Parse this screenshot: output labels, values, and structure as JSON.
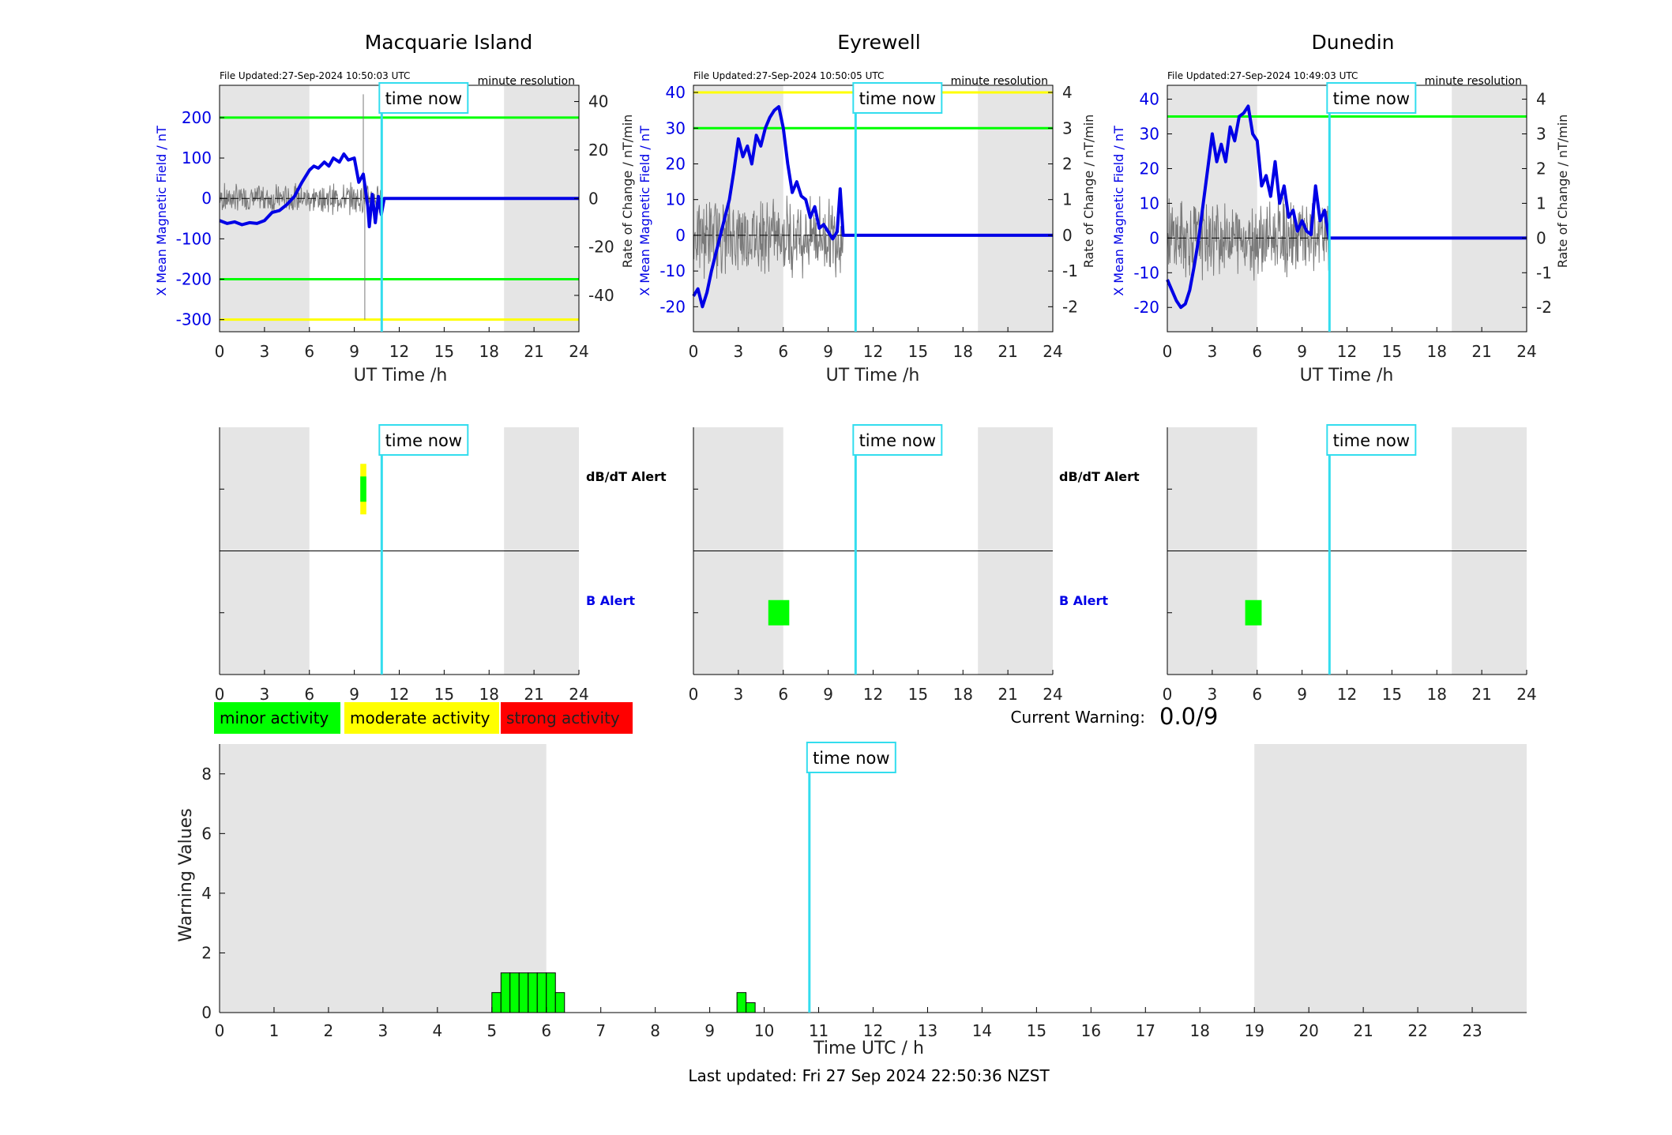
{
  "colors": {
    "shade": "#e5e5e5",
    "blue": "#0000e6",
    "green": "#00ff00",
    "yellow": "#ffff00",
    "cyan": "#33ddee",
    "red": "#ff0000",
    "gray_line": "#7a7a7a"
  },
  "labels": {
    "time_now": "time now",
    "minute_resolution": "minute resolution",
    "x_axis": "UT Time /h",
    "y_left": "X Mean Magnetic Field / nT",
    "y_right": "Rate of Change / nT/min",
    "dbdt_alert": "dB/dT Alert",
    "b_alert": "B Alert",
    "current_warning_label": "Current Warning:",
    "current_warning_value": "0.0/9",
    "bottom_ylabel": "Warning Values",
    "bottom_xlabel": "Time UTC / h",
    "last_updated": "Last updated: Fri 27 Sep 2024 22:50:36 NZST"
  },
  "legend": [
    {
      "label": "minor activity",
      "color": "#00ff00",
      "text_color": "#000000"
    },
    {
      "label": "moderate activity",
      "color": "#ffff00",
      "text_color": "#000000"
    },
    {
      "label": "strong activity",
      "color": "#ff0000",
      "text_color": "#222222"
    }
  ],
  "chart_data": [
    {
      "type": "line",
      "title": "Macquarie Island",
      "file_updated": "File Updated:27-Sep-2024 10:50:03 UTC",
      "xlim": [
        0,
        24
      ],
      "x_ticks": [
        0,
        3,
        6,
        9,
        12,
        15,
        18,
        21,
        24
      ],
      "ylim_left": [
        -330,
        280
      ],
      "yticks_left": [
        -300,
        -200,
        -100,
        0,
        100,
        200
      ],
      "ylim_right": [
        -55,
        46.7
      ],
      "yticks_right": [
        -40,
        -20,
        0,
        20,
        40
      ],
      "shaded": [
        [
          0,
          6
        ],
        [
          19,
          24
        ]
      ],
      "time_now": 10.83,
      "thresholds": [
        {
          "value": 200,
          "color": "green"
        },
        {
          "value": -200,
          "color": "green"
        },
        {
          "value": -300,
          "color": "yellow"
        }
      ],
      "series": [
        {
          "x": [
            0,
            0.5,
            1,
            1.5,
            2,
            2.5,
            3,
            3.5,
            4,
            4.5,
            5,
            5.5,
            6,
            6.3,
            6.6,
            7,
            7.3,
            7.6,
            8,
            8.3,
            8.6,
            9,
            9.3,
            9.6,
            9.9,
            10,
            10.2,
            10.4,
            10.6,
            10.8,
            11,
            15,
            20,
            24
          ],
          "y": [
            -55,
            -62,
            -58,
            -65,
            -60,
            -62,
            -55,
            -35,
            -30,
            -15,
            5,
            40,
            70,
            80,
            75,
            90,
            80,
            100,
            90,
            110,
            95,
            100,
            40,
            60,
            -20,
            -70,
            10,
            -60,
            5,
            -40,
            0,
            0,
            0,
            0
          ]
        }
      ],
      "rate_extent_x": [
        0,
        10.8
      ],
      "rate_amplitude": 5,
      "rate_spikes": [
        {
          "x": 9.6,
          "y": 43
        },
        {
          "x": 9.7,
          "y": -50
        }
      ]
    },
    {
      "type": "line",
      "title": "Eyrewell",
      "file_updated": "File Updated:27-Sep-2024 10:50:05 UTC",
      "xlim": [
        0,
        24
      ],
      "x_ticks": [
        0,
        3,
        6,
        9,
        12,
        15,
        18,
        21,
        24
      ],
      "ylim_left": [
        -27,
        42
      ],
      "yticks_left": [
        -20,
        -10,
        0,
        10,
        20,
        30,
        40
      ],
      "ylim_right": [
        -2.7,
        4.2
      ],
      "yticks_right": [
        -2,
        -1,
        0,
        1,
        2,
        3,
        4
      ],
      "shaded": [
        [
          0,
          6
        ],
        [
          19,
          24
        ]
      ],
      "time_now": 10.83,
      "thresholds": [
        {
          "value": 40,
          "color": "yellow"
        },
        {
          "value": 30,
          "color": "green"
        }
      ],
      "series": [
        {
          "x": [
            0,
            0.3,
            0.6,
            0.9,
            1.2,
            1.5,
            1.8,
            2.1,
            2.4,
            2.7,
            3,
            3.3,
            3.6,
            3.9,
            4.2,
            4.5,
            4.8,
            5.1,
            5.4,
            5.7,
            6,
            6.3,
            6.6,
            6.9,
            7.2,
            7.5,
            7.8,
            8.1,
            8.4,
            8.7,
            9,
            9.3,
            9.6,
            9.8,
            10,
            15,
            20,
            24
          ],
          "y": [
            -17,
            -15,
            -20,
            -16,
            -10,
            -5,
            0,
            5,
            10,
            18,
            27,
            22,
            25,
            20,
            28,
            25,
            30,
            33,
            35,
            36,
            30,
            20,
            12,
            15,
            11,
            10,
            5,
            8,
            2,
            3,
            1,
            -1,
            1,
            13,
            0,
            0,
            0,
            0
          ]
        }
      ],
      "rate_extent_x": [
        0,
        10
      ],
      "rate_amplitude": 0.9,
      "rate_spikes": []
    },
    {
      "type": "line",
      "title": "Dunedin",
      "file_updated": "File Updated:27-Sep-2024 10:49:03 UTC",
      "xlim": [
        0,
        24
      ],
      "x_ticks": [
        0,
        3,
        6,
        9,
        12,
        15,
        18,
        21,
        24
      ],
      "ylim_left": [
        -27,
        44
      ],
      "yticks_left": [
        -20,
        -10,
        0,
        10,
        20,
        30,
        40
      ],
      "ylim_right": [
        -2.7,
        4.4
      ],
      "yticks_right": [
        -2,
        -1,
        0,
        1,
        2,
        3,
        4
      ],
      "shaded": [
        [
          0,
          6
        ],
        [
          19,
          24
        ]
      ],
      "time_now": 10.83,
      "thresholds": [
        {
          "value": 35,
          "color": "green"
        }
      ],
      "series": [
        {
          "x": [
            0,
            0.3,
            0.6,
            0.9,
            1.2,
            1.5,
            1.8,
            2.1,
            2.4,
            2.7,
            3,
            3.3,
            3.6,
            3.9,
            4.2,
            4.5,
            4.8,
            5.1,
            5.4,
            5.7,
            6,
            6.3,
            6.6,
            6.9,
            7.2,
            7.5,
            7.8,
            8.1,
            8.4,
            8.7,
            9,
            9.3,
            9.6,
            9.9,
            10.2,
            10.5,
            10.8,
            15,
            20,
            24
          ],
          "y": [
            -12,
            -15,
            -18,
            -20,
            -19,
            -15,
            -8,
            0,
            10,
            20,
            30,
            22,
            27,
            22,
            32,
            28,
            35,
            36,
            38,
            30,
            28,
            15,
            18,
            12,
            22,
            10,
            15,
            6,
            8,
            2,
            5,
            2,
            1,
            15,
            5,
            8,
            0,
            0,
            0,
            0
          ]
        }
      ],
      "rate_extent_x": [
        0,
        10.8
      ],
      "rate_amplitude": 0.9,
      "rate_spikes": []
    },
    {
      "type": "heatmap",
      "name": "alerts-macquarie",
      "xlim": [
        0,
        24
      ],
      "x_ticks": [
        0,
        3,
        6,
        9,
        12,
        15,
        18,
        21,
        24
      ],
      "shaded": [
        [
          0,
          6
        ],
        [
          19,
          24
        ]
      ],
      "time_now": 10.83,
      "rows": [
        "dB/dT Alert",
        "B Alert"
      ],
      "row_label_colors": [
        "#000000",
        "#0000e6"
      ],
      "cells": [
        {
          "row": 0,
          "x0": 9.4,
          "x1": 9.8,
          "level": "moderate",
          "span": "full"
        },
        {
          "row": 0,
          "x0": 9.4,
          "x1": 9.8,
          "level": "minor",
          "span": "inner"
        }
      ]
    },
    {
      "type": "heatmap",
      "name": "alerts-eyrewell",
      "xlim": [
        0,
        24
      ],
      "x_ticks": [
        0,
        3,
        6,
        9,
        12,
        15,
        18,
        21,
        24
      ],
      "shaded": [
        [
          0,
          6
        ],
        [
          19,
          24
        ]
      ],
      "time_now": 10.83,
      "rows": [
        "dB/dT Alert",
        "B Alert"
      ],
      "row_label_colors": [
        "#000000",
        "#0000e6"
      ],
      "cells": [
        {
          "row": 1,
          "x0": 5,
          "x1": 6.4,
          "level": "minor",
          "span": "inner"
        }
      ]
    },
    {
      "type": "heatmap",
      "name": "alerts-dunedin",
      "xlim": [
        0,
        24
      ],
      "x_ticks": [
        0,
        3,
        6,
        9,
        12,
        15,
        18,
        21,
        24
      ],
      "shaded": [
        [
          0,
          6
        ],
        [
          19,
          24
        ]
      ],
      "time_now": 10.83,
      "rows": [
        "dB/dT Alert",
        "B Alert"
      ],
      "row_label_colors": [
        "#000000",
        "#0000e6"
      ],
      "cells": [
        {
          "row": 1,
          "x0": 5.2,
          "x1": 6.3,
          "level": "minor",
          "span": "inner"
        }
      ]
    },
    {
      "type": "bar",
      "name": "warning-values",
      "xlim": [
        0,
        24
      ],
      "x_ticks": [
        0,
        1,
        2,
        3,
        4,
        5,
        6,
        7,
        8,
        9,
        10,
        11,
        12,
        13,
        14,
        15,
        16,
        17,
        18,
        19,
        20,
        21,
        22,
        23
      ],
      "ylim": [
        0,
        9
      ],
      "yticks": [
        0,
        2,
        4,
        6,
        8
      ],
      "shaded": [
        [
          0,
          6
        ],
        [
          19,
          24
        ]
      ],
      "time_now": 10.83,
      "bar_width": 0.1667,
      "x": [
        5.0,
        5.167,
        5.333,
        5.5,
        5.667,
        5.833,
        6.0,
        6.167,
        9.5,
        9.667
      ],
      "values": [
        0.67,
        1.33,
        1.33,
        1.33,
        1.33,
        1.33,
        1.33,
        0.67,
        0.67,
        0.33
      ]
    }
  ]
}
